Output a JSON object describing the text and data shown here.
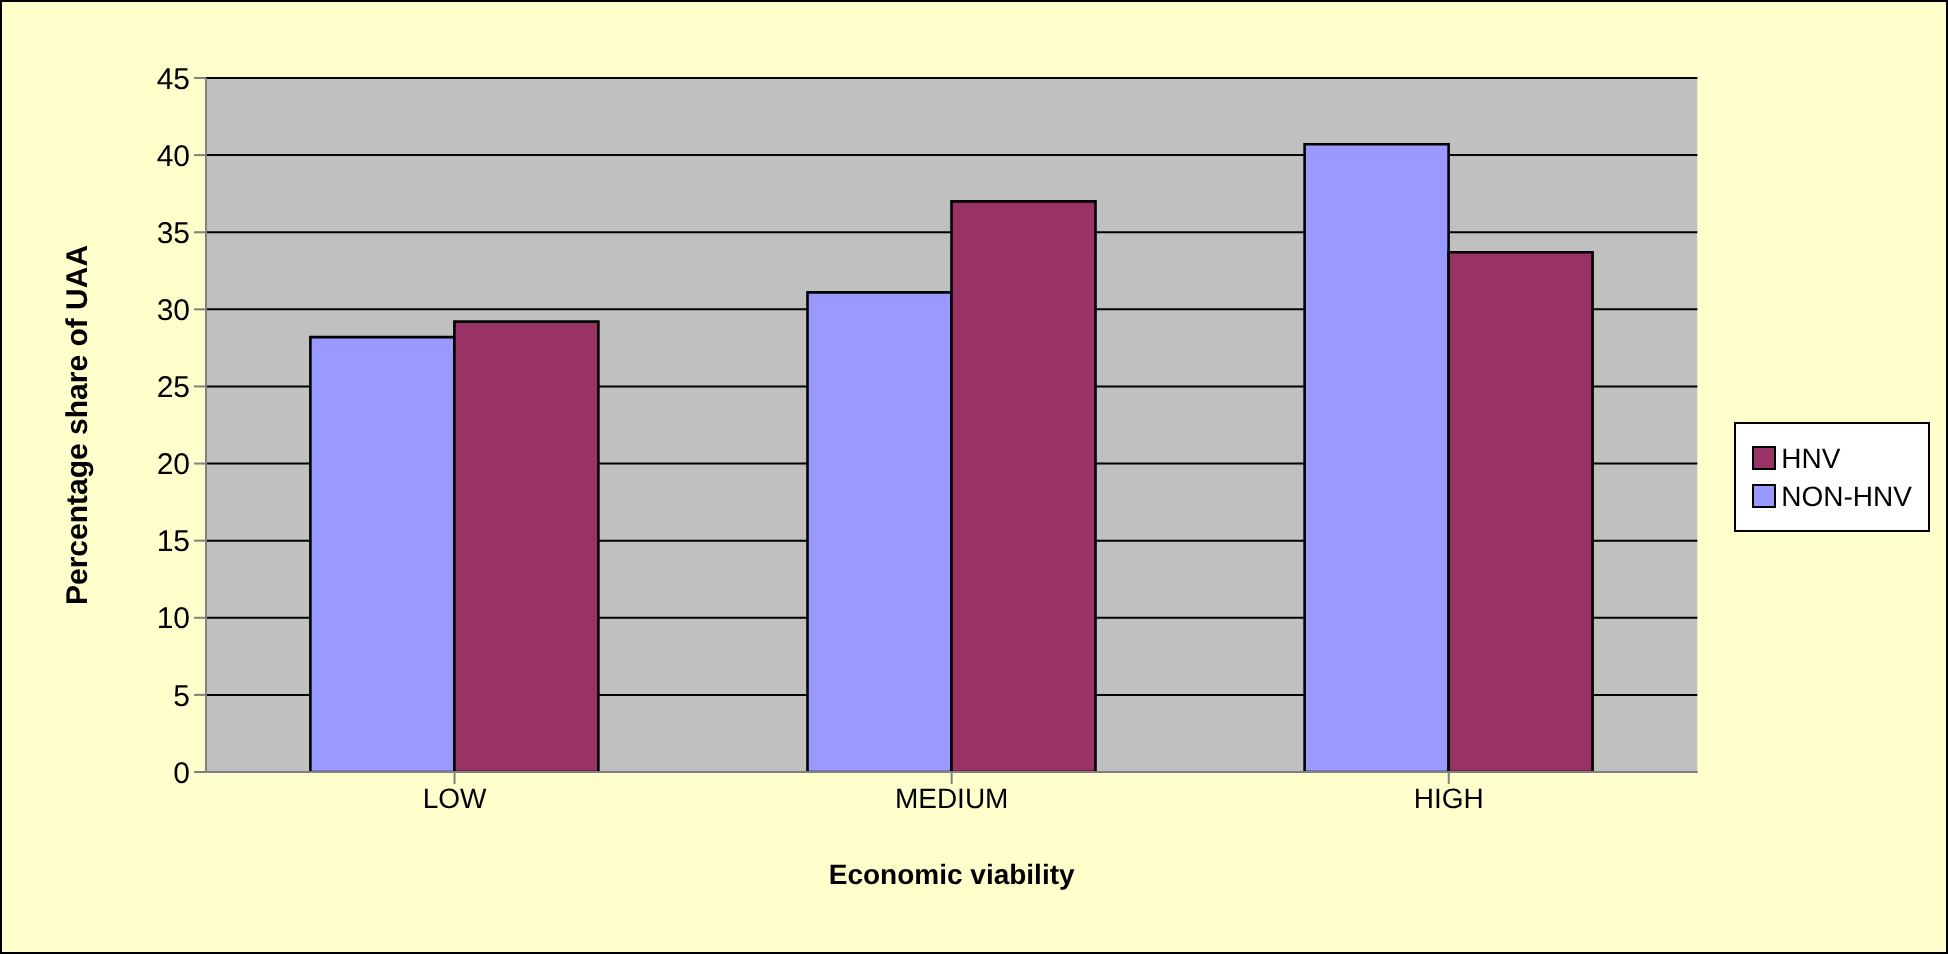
{
  "chart_data": {
    "type": "bar",
    "xlabel": "Economic viability",
    "ylabel": "Percentage share of UAA",
    "categories": [
      "LOW",
      "MEDIUM",
      "HIGH"
    ],
    "series": [
      {
        "name": "NON-HNV",
        "color": "#9999ff",
        "values": [
          28.2,
          31.1,
          40.7
        ]
      },
      {
        "name": "HNV",
        "color": "#993366",
        "values": [
          29.2,
          37.0,
          33.7
        ]
      }
    ],
    "ylim": [
      0,
      45
    ],
    "yticks": [
      0,
      5,
      10,
      15,
      20,
      25,
      30,
      35,
      40,
      45
    ],
    "grid": "y",
    "legend": "right"
  }
}
